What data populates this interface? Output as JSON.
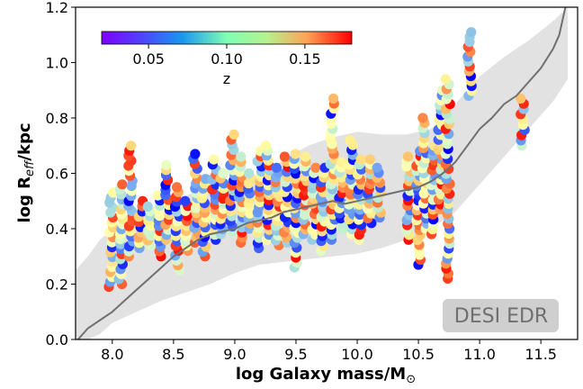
{
  "chart_data": {
    "type": "scatter",
    "title": "",
    "xlabel": "log Galaxy mass/M",
    "xlabel_sub": "⊙",
    "ylabel": "log R",
    "ylabel_sub": "eff",
    "ylabel_suffix": "/kpc",
    "xlim": [
      7.7,
      11.8
    ],
    "ylim": [
      0.0,
      1.2
    ],
    "xticks": [
      8.0,
      8.5,
      9.0,
      9.5,
      10.0,
      10.5,
      11.0,
      11.5
    ],
    "xtick_labels": [
      "8.0",
      "8.5",
      "9.0",
      "9.5",
      "10.0",
      "10.5",
      "11.0",
      "11.5"
    ],
    "yticks": [
      0.0,
      0.2,
      0.4,
      0.6,
      0.8,
      1.0,
      1.2
    ],
    "ytick_labels": [
      "0.0",
      "0.2",
      "0.4",
      "0.6",
      "0.8",
      "1.0",
      "1.2"
    ],
    "colorbar": {
      "label": "z",
      "range": [
        0.02,
        0.18
      ],
      "ticks": [
        0.05,
        0.1,
        0.15
      ],
      "tick_labels": [
        "0.05",
        "0.10",
        "0.15"
      ],
      "colormap": "rainbow",
      "placement": "top-left"
    },
    "watermark": "DESI EDR",
    "watermark_placement": "bottom-right",
    "band": {
      "name": "reference relation scatter",
      "color": "#e2e2e2",
      "x": [
        7.7,
        7.8,
        7.9,
        8.0,
        8.2,
        8.4,
        8.6,
        8.8,
        9.0,
        9.2,
        9.4,
        9.6,
        9.8,
        10.0,
        10.2,
        10.4,
        10.6,
        10.8,
        11.0,
        11.2,
        11.4,
        11.6,
        11.72
      ],
      "upper": [
        0.25,
        0.3,
        0.36,
        0.4,
        0.45,
        0.49,
        0.52,
        0.55,
        0.57,
        0.59,
        0.65,
        0.7,
        0.73,
        0.75,
        0.74,
        0.74,
        0.76,
        0.85,
        0.95,
        1.02,
        1.08,
        1.15,
        1.2
      ],
      "lower": [
        0.0,
        0.0,
        0.02,
        0.06,
        0.1,
        0.14,
        0.17,
        0.2,
        0.24,
        0.27,
        0.28,
        0.29,
        0.3,
        0.31,
        0.33,
        0.36,
        0.4,
        0.46,
        0.56,
        0.66,
        0.76,
        0.86,
        0.94
      ]
    },
    "line": {
      "name": "median relation",
      "color": "#707070",
      "x": [
        7.72,
        7.8,
        7.9,
        8.0,
        8.1,
        8.2,
        8.3,
        8.4,
        8.5,
        8.6,
        8.7,
        8.8,
        8.9,
        9.0,
        9.1,
        9.2,
        9.3,
        9.4,
        9.5,
        9.6,
        9.7,
        9.8,
        9.9,
        10.0,
        10.1,
        10.2,
        10.3,
        10.4,
        10.5,
        10.6,
        10.7,
        10.8,
        10.9,
        11.0,
        11.1,
        11.2,
        11.3,
        11.4,
        11.5,
        11.6,
        11.65,
        11.7
      ],
      "y": [
        0.0,
        0.04,
        0.07,
        0.1,
        0.14,
        0.18,
        0.22,
        0.26,
        0.3,
        0.33,
        0.36,
        0.38,
        0.39,
        0.4,
        0.42,
        0.43,
        0.44,
        0.46,
        0.47,
        0.48,
        0.49,
        0.5,
        0.49,
        0.5,
        0.51,
        0.52,
        0.53,
        0.54,
        0.55,
        0.57,
        0.6,
        0.64,
        0.7,
        0.76,
        0.8,
        0.85,
        0.88,
        0.93,
        0.98,
        1.05,
        1.1,
        1.2
      ]
    },
    "series": [
      {
        "name": "galaxy groups (columns of points at a given mass)",
        "columns": [
          {
            "x": 7.99,
            "ymin": 0.19,
            "ymax": 0.53
          },
          {
            "x": 8.07,
            "ymin": 0.2,
            "ymax": 0.56
          },
          {
            "x": 8.15,
            "ymin": 0.3,
            "ymax": 0.7
          },
          {
            "x": 8.23,
            "ymin": 0.33,
            "ymax": 0.5
          },
          {
            "x": 8.3,
            "ymin": 0.34,
            "ymax": 0.48
          },
          {
            "x": 8.38,
            "ymin": 0.3,
            "ymax": 0.52
          },
          {
            "x": 8.45,
            "ymin": 0.36,
            "ymax": 0.63
          },
          {
            "x": 8.53,
            "ymin": 0.25,
            "ymax": 0.55
          },
          {
            "x": 8.6,
            "ymin": 0.32,
            "ymax": 0.5
          },
          {
            "x": 8.68,
            "ymin": 0.35,
            "ymax": 0.67
          },
          {
            "x": 8.75,
            "ymin": 0.3,
            "ymax": 0.58
          },
          {
            "x": 8.83,
            "ymin": 0.36,
            "ymax": 0.65
          },
          {
            "x": 8.9,
            "ymin": 0.38,
            "ymax": 0.6
          },
          {
            "x": 8.98,
            "ymin": 0.39,
            "ymax": 0.74
          },
          {
            "x": 9.05,
            "ymin": 0.35,
            "ymax": 0.66
          },
          {
            "x": 9.12,
            "ymin": 0.4,
            "ymax": 0.6
          },
          {
            "x": 9.2,
            "ymin": 0.33,
            "ymax": 0.68
          },
          {
            "x": 9.27,
            "ymin": 0.36,
            "ymax": 0.7
          },
          {
            "x": 9.35,
            "ymin": 0.34,
            "ymax": 0.62
          },
          {
            "x": 9.42,
            "ymin": 0.35,
            "ymax": 0.66
          },
          {
            "x": 9.5,
            "ymin": 0.26,
            "ymax": 0.67
          },
          {
            "x": 9.57,
            "ymin": 0.38,
            "ymax": 0.66
          },
          {
            "x": 9.65,
            "ymin": 0.36,
            "ymax": 0.62
          },
          {
            "x": 9.72,
            "ymin": 0.32,
            "ymax": 0.62
          },
          {
            "x": 9.8,
            "ymin": 0.36,
            "ymax": 0.87
          },
          {
            "x": 9.87,
            "ymin": 0.4,
            "ymax": 0.64
          },
          {
            "x": 9.95,
            "ymin": 0.38,
            "ymax": 0.72
          },
          {
            "x": 10.02,
            "ymin": 0.36,
            "ymax": 0.65
          },
          {
            "x": 10.1,
            "ymin": 0.42,
            "ymax": 0.65
          },
          {
            "x": 10.18,
            "ymin": 0.44,
            "ymax": 0.62
          },
          {
            "x": 10.42,
            "ymin": 0.36,
            "ymax": 0.66
          },
          {
            "x": 10.5,
            "ymin": 0.27,
            "ymax": 0.68
          },
          {
            "x": 10.55,
            "ymin": 0.4,
            "ymax": 0.8
          },
          {
            "x": 10.62,
            "ymin": 0.38,
            "ymax": 0.7
          },
          {
            "x": 10.68,
            "ymin": 0.47,
            "ymax": 0.9
          },
          {
            "x": 10.74,
            "ymin": 0.22,
            "ymax": 0.94
          },
          {
            "x": 10.92,
            "ymin": 0.88,
            "ymax": 1.11
          },
          {
            "x": 11.35,
            "ymin": 0.7,
            "ymax": 0.87
          }
        ]
      }
    ]
  }
}
